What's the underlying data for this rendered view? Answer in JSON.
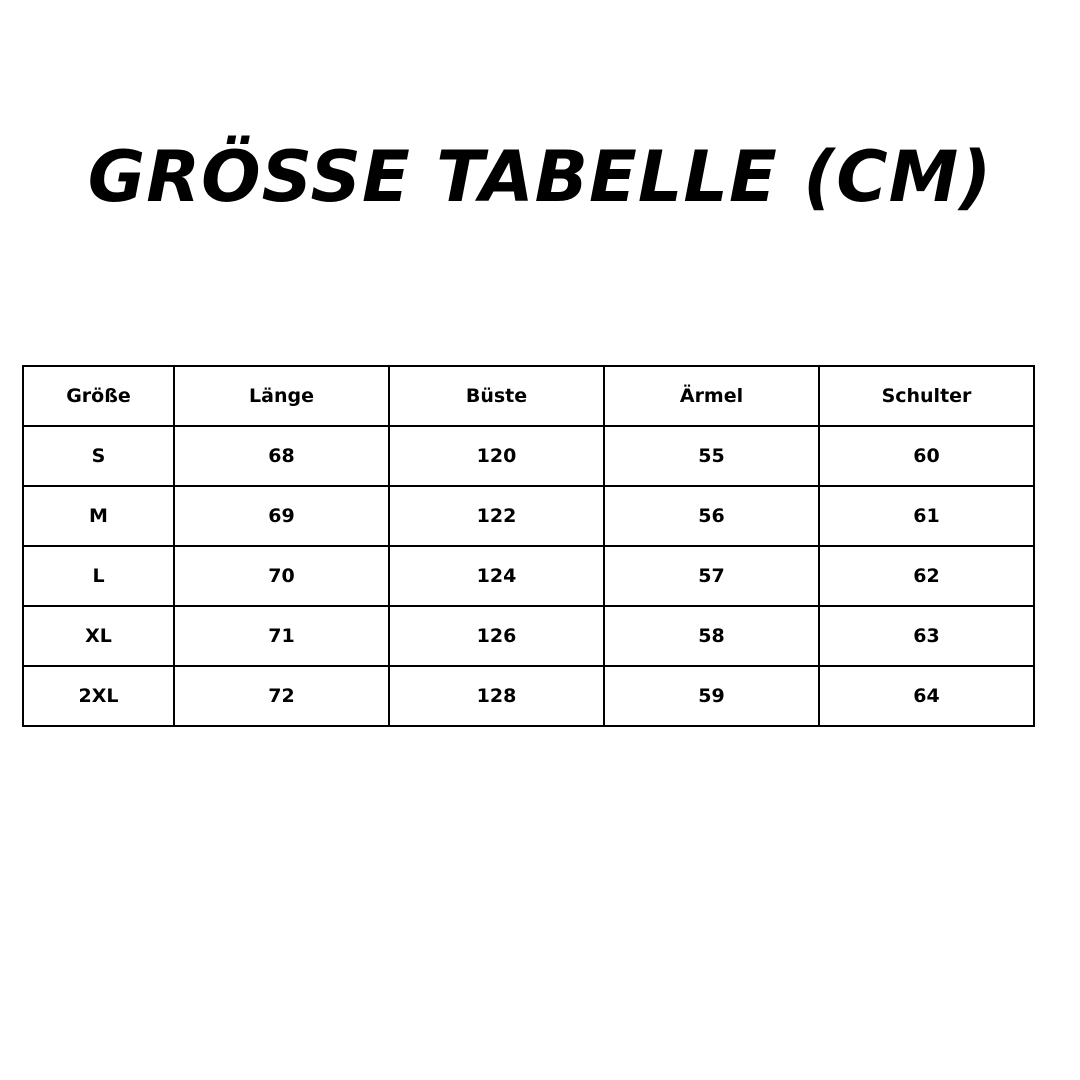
{
  "title": "GRÖSSE TABELLE (CM)",
  "table": {
    "headers": [
      "Größe",
      "Länge",
      "Büste",
      "Ärmel",
      "Schulter"
    ],
    "rows": [
      [
        "S",
        "68",
        "120",
        "55",
        "60"
      ],
      [
        "M",
        "69",
        "122",
        "56",
        "61"
      ],
      [
        "L",
        "70",
        "124",
        "57",
        "62"
      ],
      [
        "XL",
        "71",
        "126",
        "58",
        "63"
      ],
      [
        "2XL",
        "72",
        "128",
        "59",
        "64"
      ]
    ]
  }
}
